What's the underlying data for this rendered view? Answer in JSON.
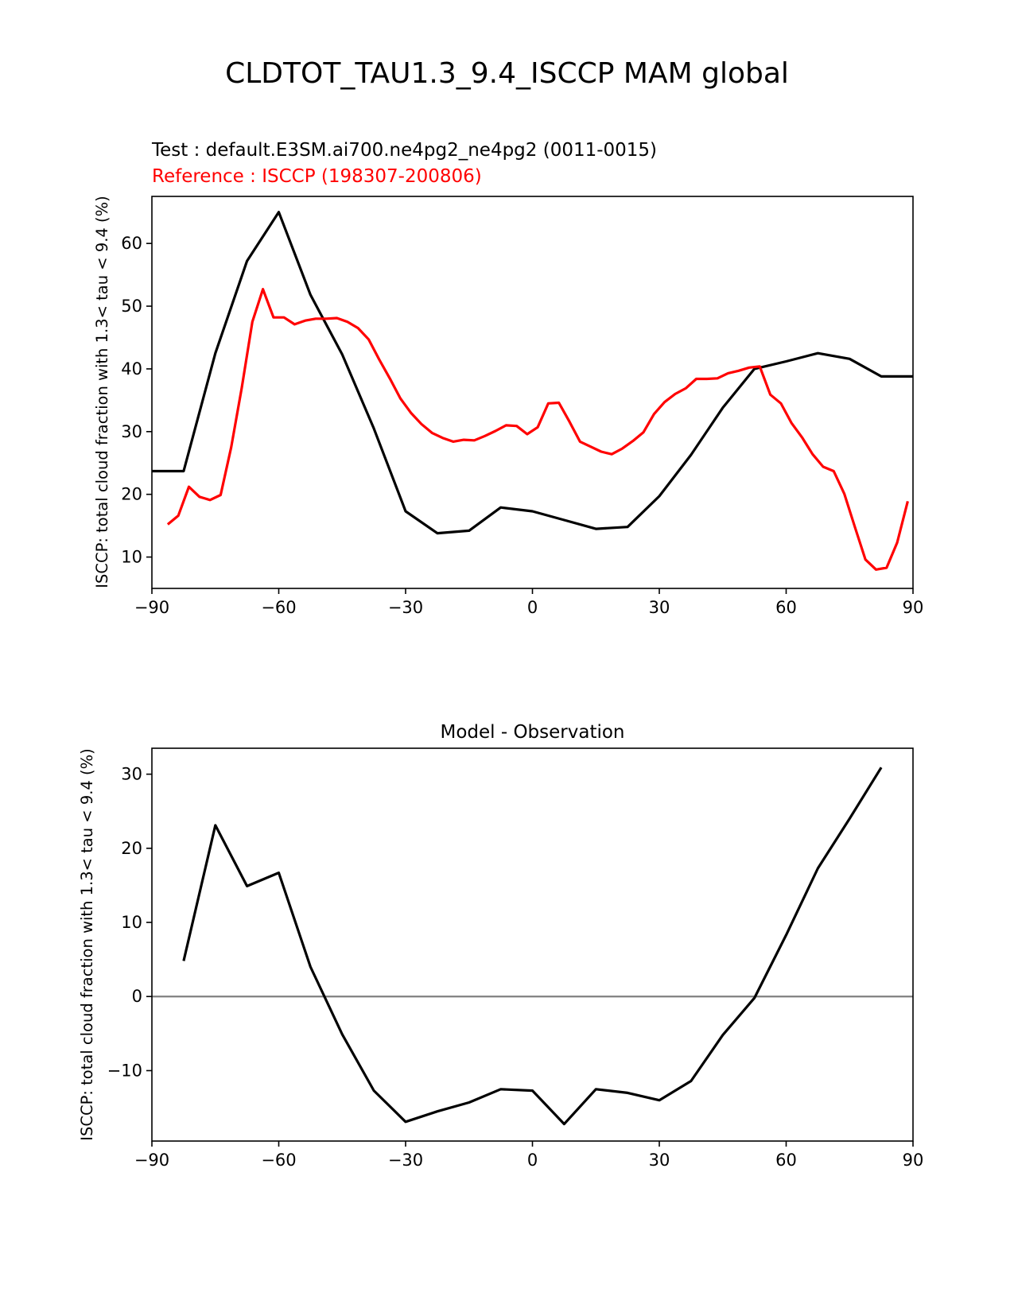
{
  "figure": {
    "title": "CLDTOT_TAU1.3_9.4_ISCCP MAM global",
    "test_label": "Test : default.E3SM.ai700.ne4pg2_ne4pg2 (0011-0015)",
    "reference_label": "Reference : ISCCP (198307-200806)"
  },
  "colors": {
    "test": "#000000",
    "reference": "#ff0000",
    "zero_line": "#808080"
  },
  "chart_data": [
    {
      "type": "line",
      "title": "",
      "xlabel": "",
      "ylabel": "ISCCP: total cloud fraction with 1.3< tau < 9.4 (%)",
      "xlim": [
        -90,
        90
      ],
      "ylim": [
        5,
        67.5
      ],
      "xticks": [
        -90,
        -60,
        -30,
        0,
        30,
        60,
        90
      ],
      "xtick_labels": [
        "−90",
        "−60",
        "−30",
        "0",
        "30",
        "60",
        "90"
      ],
      "yticks": [
        10,
        20,
        30,
        40,
        50,
        60
      ],
      "ytick_labels": [
        "10",
        "20",
        "30",
        "40",
        "50",
        "60"
      ],
      "series": [
        {
          "key": "test",
          "color": "#000000",
          "x": [
            -90,
            -82.5,
            -75,
            -67.5,
            -60,
            -52.5,
            -45,
            -37.5,
            -30,
            -22.5,
            -15,
            -7.5,
            0,
            7.5,
            15,
            22.5,
            30,
            37.5,
            45,
            52.5,
            60,
            67.5,
            75,
            82.5,
            90
          ],
          "y": [
            23.7,
            23.7,
            42.5,
            57.2,
            65.0,
            51.8,
            42.3,
            30.5,
            17.3,
            13.8,
            14.2,
            17.9,
            17.3,
            15.9,
            14.5,
            14.8,
            19.7,
            26.3,
            33.8,
            40.0,
            41.2,
            42.5,
            41.6,
            38.8,
            38.8
          ]
        },
        {
          "key": "reference",
          "color": "#ff0000",
          "x": [
            -86.25,
            -83.75,
            -81.25,
            -78.75,
            -76.25,
            -73.75,
            -71.25,
            -68.75,
            -66.25,
            -63.75,
            -61.25,
            -58.75,
            -56.25,
            -53.75,
            -51.25,
            -48.75,
            -46.25,
            -43.75,
            -41.25,
            -38.75,
            -36.25,
            -33.75,
            -31.25,
            -28.75,
            -26.25,
            -23.75,
            -21.25,
            -18.75,
            -16.25,
            -13.75,
            -11.25,
            -8.75,
            -6.25,
            -3.75,
            -1.25,
            1.25,
            3.75,
            6.25,
            8.75,
            11.25,
            13.75,
            16.25,
            18.75,
            21.25,
            23.75,
            26.25,
            28.75,
            31.25,
            33.75,
            36.25,
            38.75,
            41.25,
            43.75,
            46.25,
            48.75,
            51.25,
            53.75,
            56.25,
            58.75,
            61.25,
            63.75,
            66.25,
            68.75,
            71.25,
            73.75,
            76.25,
            78.75,
            81.25,
            83.75,
            86.25,
            88.75
          ],
          "y": [
            15.2,
            16.6,
            21.2,
            19.6,
            19.1,
            19.9,
            27.5,
            37.0,
            47.5,
            52.7,
            48.2,
            48.2,
            47.1,
            47.7,
            48.0,
            48.0,
            48.1,
            47.5,
            46.5,
            44.7,
            41.5,
            38.5,
            35.3,
            33.0,
            31.2,
            29.8,
            29.0,
            28.4,
            28.7,
            28.6,
            29.3,
            30.1,
            31.0,
            30.9,
            29.6,
            30.7,
            34.5,
            34.6,
            31.6,
            28.4,
            27.6,
            26.8,
            26.4,
            27.3,
            28.5,
            29.9,
            32.8,
            34.7,
            36.0,
            36.9,
            38.4,
            38.4,
            38.5,
            39.3,
            39.7,
            40.2,
            40.4,
            35.9,
            34.5,
            31.4,
            29.1,
            26.4,
            24.4,
            23.7,
            20.1,
            14.8,
            9.6,
            8.0,
            8.3,
            12.3,
            18.9
          ]
        }
      ]
    },
    {
      "type": "line",
      "title": "Model - Observation",
      "xlabel": "",
      "ylabel": "ISCCP: total cloud fraction with 1.3< tau < 9.4 (%)",
      "xlim": [
        -90,
        90
      ],
      "ylim": [
        -19.5,
        33.5
      ],
      "xticks": [
        -90,
        -60,
        -30,
        0,
        30,
        60,
        90
      ],
      "xtick_labels": [
        "−90",
        "−60",
        "−30",
        "0",
        "30",
        "60",
        "90"
      ],
      "yticks": [
        -10,
        0,
        10,
        20,
        30
      ],
      "ytick_labels": [
        "−10",
        "0",
        "10",
        "20",
        "30"
      ],
      "zero_line": true,
      "series": [
        {
          "key": "difference",
          "color": "#000000",
          "x": [
            -82.5,
            -75,
            -67.5,
            -60,
            -52.5,
            -45,
            -37.5,
            -30,
            -22.5,
            -15,
            -7.5,
            0,
            7.5,
            15,
            22.5,
            30,
            37.5,
            45,
            52.5,
            60,
            67.5,
            75,
            82.5
          ],
          "y": [
            4.8,
            23.1,
            14.9,
            16.7,
            4.0,
            -5.1,
            -12.7,
            -16.9,
            -15.5,
            -14.3,
            -12.5,
            -12.7,
            -17.2,
            -12.5,
            -13.0,
            -14.0,
            -11.4,
            -5.2,
            -0.2,
            8.3,
            17.3,
            24.0,
            30.9
          ]
        }
      ]
    }
  ]
}
